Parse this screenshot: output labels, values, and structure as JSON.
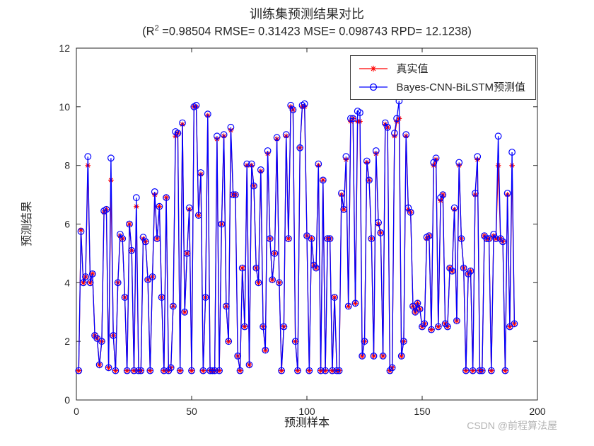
{
  "header": {
    "title": "训练集预测结果对比",
    "sub_prefix": "(R",
    "sub_sup": "2",
    "sub_rest": " =0.98504 RMSE= 0.31423 MSE= 0.098743 RPD= 12.1238)"
  },
  "watermark": "CSDN @前程算法屋",
  "chart_data": {
    "type": "line",
    "title": "训练集预测结果对比",
    "subtitle": "(R^2 =0.98504 RMSE= 0.31423 MSE= 0.098743 RPD= 12.1238)",
    "xlabel": "预测样本",
    "ylabel": "预测结果",
    "xlim": [
      0,
      200
    ],
    "ylim": [
      0,
      12
    ],
    "xticks": [
      0,
      50,
      100,
      150,
      200
    ],
    "yticks": [
      0,
      2,
      4,
      6,
      8,
      10,
      12
    ],
    "grid": false,
    "legend_position": "top-right",
    "axis_color": "#262626",
    "x_start": 1,
    "series": [
      {
        "name": "真实值",
        "color": "#ff0000",
        "marker": "asterisk",
        "values": [
          1.0,
          5.8,
          4.0,
          4.2,
          8.0,
          4.0,
          4.3,
          2.2,
          2.1,
          1.2,
          2.0,
          6.4,
          6.5,
          1.1,
          7.5,
          2.2,
          1.0,
          4.0,
          5.6,
          5.5,
          3.5,
          1.0,
          6.0,
          5.1,
          1.0,
          6.6,
          1.0,
          1.0,
          5.5,
          5.4,
          4.1,
          1.0,
          4.2,
          7.0,
          5.5,
          6.6,
          3.5,
          1.0,
          6.9,
          1.0,
          1.1,
          3.2,
          9.0,
          9.1,
          1.0,
          9.4,
          3.0,
          5.0,
          6.5,
          1.0,
          10.0,
          10.0,
          6.3,
          7.7,
          1.0,
          3.5,
          9.7,
          1.0,
          1.0,
          1.0,
          8.9,
          1.0,
          6.0,
          9.0,
          3.2,
          2.0,
          9.2,
          7.0,
          7.0,
          1.5,
          1.0,
          4.5,
          2.5,
          8.0,
          1.2,
          8.0,
          7.3,
          4.5,
          4.0,
          7.8,
          2.5,
          1.7,
          8.4,
          5.5,
          4.1,
          5.0,
          8.9,
          4.0,
          1.0,
          2.5,
          9.0,
          5.5,
          10.0,
          9.9,
          2.0,
          1.0,
          8.6,
          10.0,
          10.0,
          5.6,
          1.0,
          5.5,
          4.6,
          4.5,
          8.0,
          1.0,
          7.5,
          1.0,
          5.5,
          5.5,
          1.0,
          3.5,
          1.0,
          1.0,
          7.0,
          6.5,
          8.2,
          3.2,
          9.5,
          9.6,
          3.3,
          9.5,
          9.5,
          1.5,
          2.0,
          8.1,
          7.5,
          5.5,
          1.5,
          8.4,
          6.0,
          5.7,
          1.5,
          9.4,
          9.3,
          1.0,
          1.1,
          9.0,
          9.5,
          9.6,
          1.5,
          2.0,
          9.0,
          6.5,
          6.4,
          3.2,
          3.0,
          3.3,
          3.1,
          2.5,
          2.6,
          5.5,
          5.6,
          2.4,
          8.0,
          8.2,
          2.5,
          6.8,
          7.0,
          2.6,
          2.5,
          4.5,
          4.4,
          6.5,
          2.7,
          8.0,
          5.5,
          4.5,
          1.0,
          4.3,
          4.4,
          1.0,
          7.0,
          8.2,
          1.0,
          1.0,
          5.6,
          5.5,
          5.5,
          1.0,
          5.6,
          5.5,
          8.0,
          5.5,
          5.4,
          1.0,
          7.0,
          2.5,
          8.0,
          2.6
        ]
      },
      {
        "name": "Bayes-CNN-BiLSTM预测值",
        "color": "#0000ff",
        "marker": "circle",
        "values": [
          1.0,
          5.75,
          4.0,
          4.2,
          8.3,
          4.0,
          4.3,
          2.2,
          2.1,
          1.2,
          2.0,
          6.45,
          6.5,
          1.1,
          8.25,
          2.2,
          1.0,
          4.0,
          5.65,
          5.5,
          3.5,
          1.0,
          6.0,
          5.1,
          1.0,
          6.9,
          1.0,
          1.0,
          5.55,
          5.4,
          4.1,
          1.0,
          4.2,
          7.1,
          5.5,
          6.6,
          3.5,
          1.0,
          6.9,
          1.0,
          1.1,
          3.2,
          9.15,
          9.1,
          1.0,
          9.45,
          3.0,
          5.0,
          6.55,
          1.0,
          10.0,
          10.05,
          6.3,
          7.75,
          1.0,
          3.5,
          9.75,
          1.0,
          1.0,
          1.0,
          9.0,
          1.0,
          6.0,
          9.05,
          3.2,
          2.0,
          9.3,
          7.0,
          7.0,
          1.5,
          1.0,
          4.5,
          2.5,
          8.05,
          1.2,
          8.05,
          7.3,
          4.5,
          4.0,
          7.85,
          2.5,
          1.7,
          8.5,
          5.5,
          4.1,
          5.0,
          8.95,
          4.0,
          1.0,
          2.5,
          9.05,
          5.5,
          10.05,
          9.9,
          2.0,
          1.0,
          8.6,
          10.05,
          10.1,
          5.6,
          1.0,
          5.5,
          4.6,
          4.5,
          8.05,
          1.0,
          7.5,
          1.0,
          5.5,
          5.5,
          1.0,
          3.5,
          1.0,
          1.0,
          7.05,
          6.5,
          8.3,
          3.2,
          9.6,
          9.6,
          3.3,
          9.85,
          9.8,
          1.5,
          2.0,
          8.15,
          7.5,
          5.5,
          1.5,
          8.5,
          6.05,
          5.7,
          1.5,
          9.45,
          9.3,
          1.0,
          1.1,
          9.1,
          9.6,
          10.2,
          1.5,
          2.0,
          9.05,
          6.55,
          6.4,
          3.2,
          3.0,
          3.3,
          3.1,
          2.5,
          2.6,
          5.55,
          5.6,
          2.4,
          8.1,
          8.25,
          2.5,
          6.9,
          7.0,
          2.6,
          2.5,
          4.5,
          4.4,
          6.55,
          2.7,
          8.1,
          5.5,
          4.5,
          1.0,
          4.3,
          4.4,
          1.0,
          7.05,
          8.3,
          1.0,
          1.0,
          5.6,
          5.5,
          5.5,
          1.0,
          5.65,
          5.5,
          9.0,
          5.5,
          5.4,
          1.0,
          7.05,
          2.5,
          8.45,
          2.6
        ]
      }
    ]
  }
}
